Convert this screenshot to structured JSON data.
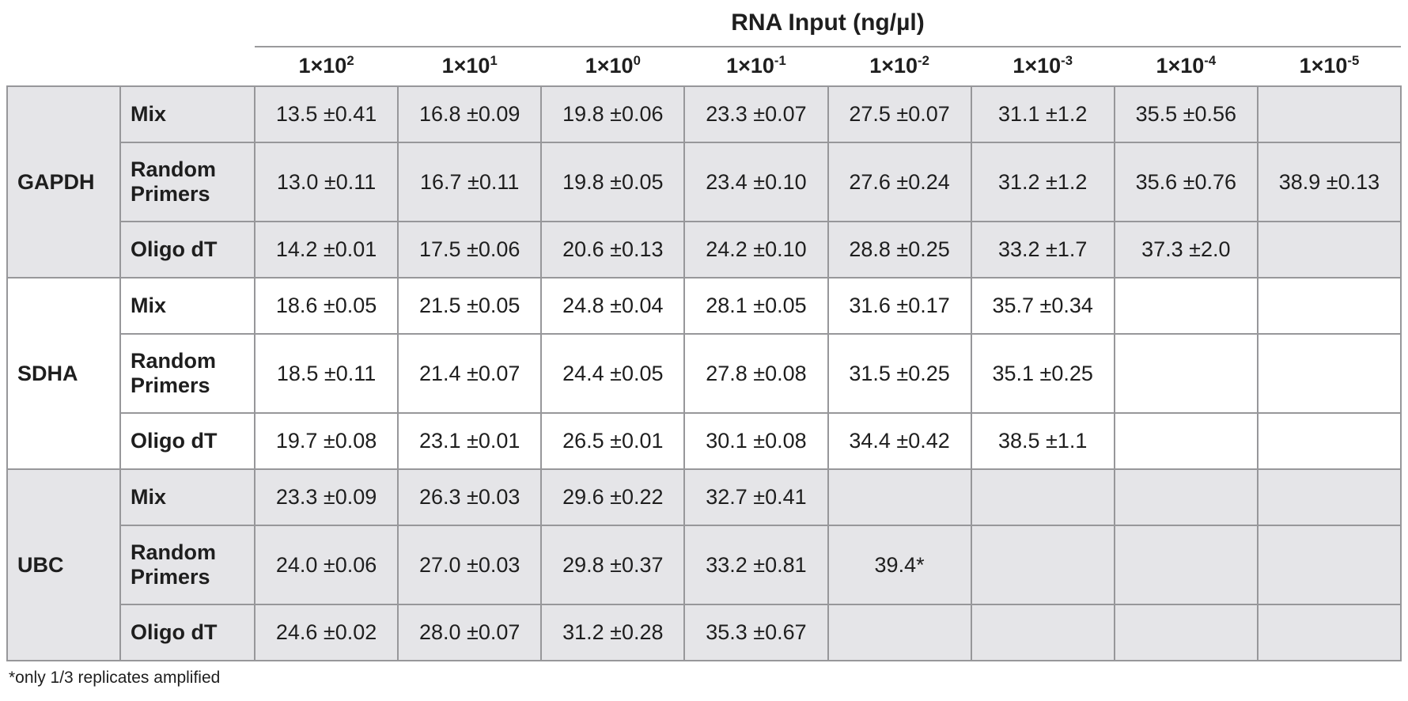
{
  "chart_data": {
    "type": "table",
    "title": "RNA Input (ng/µl)",
    "columns": [
      {
        "base": "1×10",
        "exp": "2"
      },
      {
        "base": "1×10",
        "exp": "1"
      },
      {
        "base": "1×10",
        "exp": "0"
      },
      {
        "base": "1×10",
        "exp": "-1"
      },
      {
        "base": "1×10",
        "exp": "-2"
      },
      {
        "base": "1×10",
        "exp": "-3"
      },
      {
        "base": "1×10",
        "exp": "-4"
      },
      {
        "base": "1×10",
        "exp": "-5"
      }
    ],
    "row_groups": [
      {
        "name": "GAPDH",
        "shaded": true,
        "rows": [
          {
            "primer": "Mix",
            "values": [
              "13.5 ±0.41",
              "16.8 ±0.09",
              "19.8 ±0.06",
              "23.3 ±0.07",
              "27.5 ±0.07",
              "31.1 ±1.2",
              "35.5 ±0.56",
              ""
            ]
          },
          {
            "primer": "Random Primers",
            "values": [
              "13.0 ±0.11",
              "16.7 ±0.11",
              "19.8 ±0.05",
              "23.4 ±0.10",
              "27.6 ±0.24",
              "31.2 ±1.2",
              "35.6 ±0.76",
              "38.9 ±0.13"
            ]
          },
          {
            "primer": "Oligo dT",
            "values": [
              "14.2 ±0.01",
              "17.5 ±0.06",
              "20.6 ±0.13",
              "24.2 ±0.10",
              "28.8 ±0.25",
              "33.2 ±1.7",
              "37.3 ±2.0",
              ""
            ]
          }
        ]
      },
      {
        "name": "SDHA",
        "shaded": false,
        "rows": [
          {
            "primer": "Mix",
            "values": [
              "18.6 ±0.05",
              "21.5 ±0.05",
              "24.8 ±0.04",
              "28.1 ±0.05",
              "31.6 ±0.17",
              "35.7 ±0.34",
              "",
              ""
            ]
          },
          {
            "primer": "Random Primers",
            "values": [
              "18.5 ±0.11",
              "21.4 ±0.07",
              "24.4 ±0.05",
              "27.8 ±0.08",
              "31.5 ±0.25",
              "35.1 ±0.25",
              "",
              ""
            ]
          },
          {
            "primer": "Oligo dT",
            "values": [
              "19.7 ±0.08",
              "23.1 ±0.01",
              "26.5 ±0.01",
              "30.1 ±0.08",
              "34.4 ±0.42",
              "38.5 ±1.1",
              "",
              ""
            ]
          }
        ]
      },
      {
        "name": "UBC",
        "shaded": true,
        "rows": [
          {
            "primer": "Mix",
            "values": [
              "23.3 ±0.09",
              "26.3 ±0.03",
              "29.6 ±0.22",
              "32.7 ±0.41",
              "",
              "",
              "",
              ""
            ]
          },
          {
            "primer": "Random Primers",
            "values": [
              "24.0 ±0.06",
              "27.0 ±0.03",
              "29.8 ±0.37",
              "33.2 ±0.81",
              "39.4*",
              "",
              "",
              ""
            ]
          },
          {
            "primer": "Oligo dT",
            "values": [
              "24.6 ±0.02",
              "28.0 ±0.07",
              "31.2 ±0.28",
              "35.3 ±0.67",
              "",
              "",
              "",
              ""
            ]
          }
        ]
      }
    ],
    "footnote": "*only 1/3 replicates amplified"
  },
  "colors": {
    "shaded_bg": "#e5e5e8",
    "border": "#97979a",
    "text": "#1e1e1e",
    "background": "#ffffff"
  }
}
